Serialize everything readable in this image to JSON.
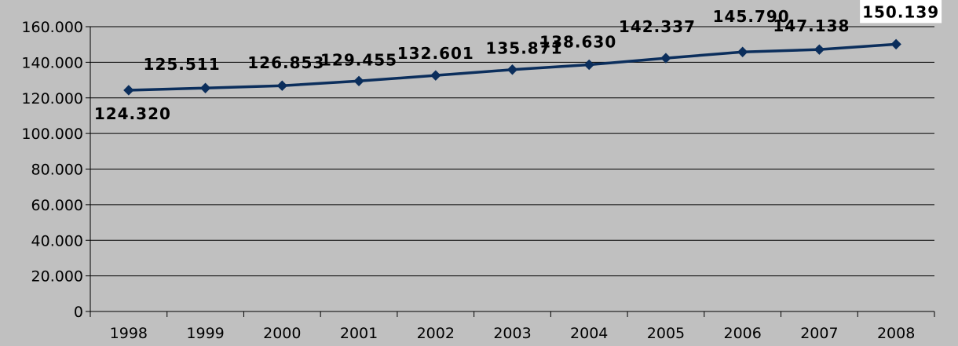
{
  "chart_data": {
    "type": "line",
    "categories": [
      "1998",
      "1999",
      "2000",
      "2001",
      "2002",
      "2003",
      "2004",
      "2005",
      "2006",
      "2007",
      "2008"
    ],
    "series": [
      {
        "values": [
          124320,
          125511,
          126853,
          129455,
          132601,
          135871,
          138630,
          142337,
          145790,
          147138,
          150139
        ],
        "value_labels": [
          "124.320",
          "125.511",
          "126.853",
          "129.455",
          "132.601",
          "135.871",
          "138.630",
          "142.337",
          "145.790",
          "147.138",
          "150.139"
        ]
      }
    ],
    "y_ticks": [
      0,
      20000,
      40000,
      60000,
      80000,
      100000,
      120000,
      140000,
      160000
    ],
    "y_tick_labels": [
      "0",
      "20.000",
      "40.000",
      "60.000",
      "80.000",
      "100.000",
      "120.000",
      "140.000",
      "160.000"
    ],
    "ylim": [
      0,
      160000
    ],
    "title": "",
    "xlabel": "",
    "ylabel": "",
    "grid": true,
    "legend": "none",
    "colors": {
      "background": "#c0c0c0",
      "line": "#0b2e5c",
      "marker": "#0b2e5c",
      "grid": "#000000",
      "highlight_label_bg": "#ffffff"
    }
  }
}
